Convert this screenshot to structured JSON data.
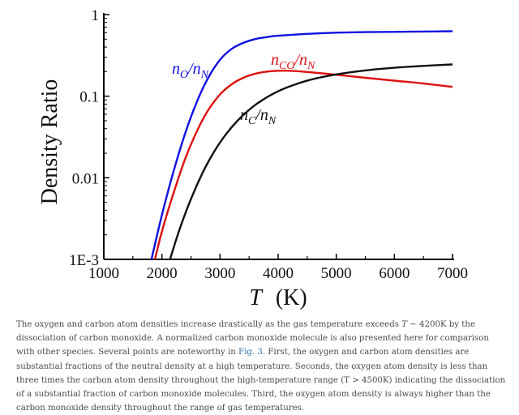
{
  "chart_data": {
    "type": "line",
    "xlabel": "T",
    "xunit": "(K)",
    "ylabel": "Density Ratio",
    "xlim": [
      1000,
      7000
    ],
    "ylim": [
      0.001,
      1
    ],
    "yscale": "log",
    "grid": false,
    "x_ticks": [
      1000,
      2000,
      3000,
      4000,
      5000,
      6000,
      7000
    ],
    "x_tick_labels": [
      "1000",
      "2000",
      "3000",
      "4000",
      "5000",
      "6000",
      "7000"
    ],
    "y_ticks": [
      0.001,
      0.01,
      0.1,
      1
    ],
    "y_tick_labels": [
      "1E-3",
      "0.01",
      "0.1",
      "1"
    ],
    "series": [
      {
        "name": "n_O/n_N",
        "label_main": "n",
        "label_sub1": "O",
        "label_mid": "/n",
        "label_sub2": "N",
        "color": "#1010e0",
        "x": [
          1820,
          2000,
          2200,
          2400,
          2600,
          2800,
          3000,
          3200,
          3400,
          3600,
          3800,
          4000,
          4500,
          5000,
          5500,
          6000,
          6500,
          7000
        ],
        "y": [
          0.001,
          0.0035,
          0.012,
          0.035,
          0.085,
          0.17,
          0.28,
          0.38,
          0.45,
          0.5,
          0.53,
          0.55,
          0.58,
          0.6,
          0.61,
          0.615,
          0.62,
          0.625
        ]
      },
      {
        "name": "n_CO/n_N",
        "label_main": "n",
        "label_sub1": "CO",
        "label_mid": "/n",
        "label_sub2": "N",
        "color": "#dd1111",
        "x": [
          1880,
          2000,
          2200,
          2400,
          2600,
          2800,
          3000,
          3200,
          3400,
          3600,
          3800,
          4000,
          4200,
          4500,
          5000,
          5500,
          6000,
          6500,
          7000
        ],
        "y": [
          0.001,
          0.0022,
          0.0065,
          0.017,
          0.037,
          0.068,
          0.105,
          0.14,
          0.168,
          0.188,
          0.2,
          0.205,
          0.205,
          0.198,
          0.183,
          0.168,
          0.155,
          0.143,
          0.13
        ]
      },
      {
        "name": "n_C/n_N",
        "label_main": "n",
        "label_sub1": "C",
        "label_mid": "/n",
        "label_sub2": "N",
        "color": "#111111",
        "x": [
          2140,
          2300,
          2500,
          2700,
          2900,
          3100,
          3300,
          3500,
          3700,
          4000,
          4300,
          4600,
          5000,
          5500,
          6000,
          6500,
          7000
        ],
        "y": [
          0.001,
          0.0023,
          0.0055,
          0.0115,
          0.021,
          0.034,
          0.05,
          0.068,
          0.087,
          0.115,
          0.14,
          0.162,
          0.185,
          0.207,
          0.223,
          0.235,
          0.245
        ]
      }
    ]
  },
  "caption": {
    "p1": "The oxygen and carbon atom densities increase drastically as the gas temperature exceeds ",
    "t1": "T",
    "p2": " ~ 4200K by the dissociation of carbon monoxide. A normalized carbon monoxide molecule is also presented here for comparison with other species. Several points are noteworthy in ",
    "link": "Fig. 3",
    "p3": ". First, the oxygen and carbon atom densities are substantial fractions of the neutral density at a high temperature. Seconds, the oxygen atom density is less than three times the carbon atom density throughout the high-temperature range (T > 4500K) indicating the dissociation of a substantial fraction of carbon monoxide molecules. Third, the oxygen atom density is always higher than the carbon monoxide density throughout the range of gas temperatures."
  }
}
